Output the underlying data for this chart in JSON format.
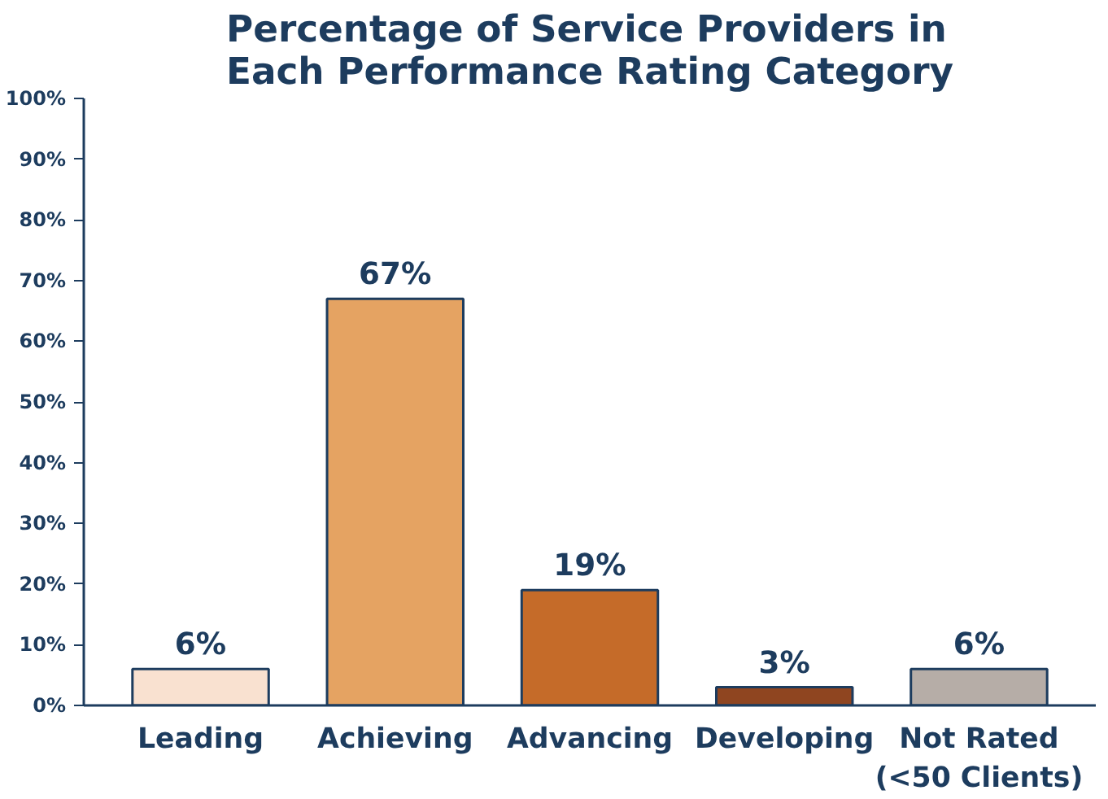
{
  "chart_data": {
    "type": "bar",
    "title": "Percentage of Service Providers in\nEach Performance Rating Category",
    "categories": [
      "Leading",
      "Achieving",
      "Advancing",
      "Developing",
      "Not Rated\n(<50 Clients)"
    ],
    "values": [
      6,
      67,
      19,
      3,
      6
    ],
    "colors": [
      "#f9e1d0",
      "#e5a362",
      "#c56b29",
      "#8f4520",
      "#b6ada7"
    ],
    "value_labels": [
      "6%",
      "67%",
      "19%",
      "3%",
      "6%"
    ],
    "ylim": [
      0,
      100
    ],
    "yticks": [
      {
        "value": 0,
        "label": "0%"
      },
      {
        "value": 10,
        "label": "10%"
      },
      {
        "value": 20,
        "label": "20%"
      },
      {
        "value": 30,
        "label": "30%"
      },
      {
        "value": 40,
        "label": "40%"
      },
      {
        "value": 50,
        "label": "50%"
      },
      {
        "value": 60,
        "label": "60%"
      },
      {
        "value": 70,
        "label": "70%"
      },
      {
        "value": 80,
        "label": "80%"
      },
      {
        "value": 90,
        "label": "90%"
      },
      {
        "value": 100,
        "label": "100%"
      }
    ],
    "grid": false
  }
}
